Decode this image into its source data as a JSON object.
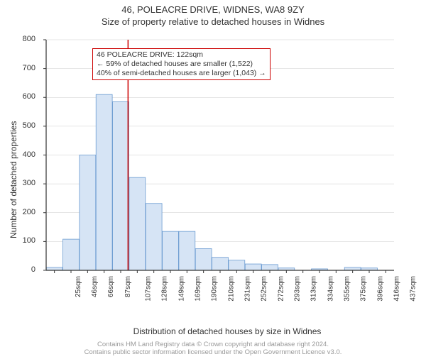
{
  "title_main": "46, POLEACRE DRIVE, WIDNES, WA8 9ZY",
  "title_sub": "Size of property relative to detached houses in Widnes",
  "chart": {
    "type": "histogram",
    "x_categories": [
      "25sqm",
      "46sqm",
      "66sqm",
      "87sqm",
      "107sqm",
      "128sqm",
      "149sqm",
      "169sqm",
      "190sqm",
      "210sqm",
      "231sqm",
      "252sqm",
      "272sqm",
      "293sqm",
      "313sqm",
      "334sqm",
      "355sqm",
      "375sqm",
      "396sqm",
      "416sqm",
      "437sqm"
    ],
    "values": [
      10,
      108,
      400,
      610,
      585,
      322,
      232,
      135,
      135,
      75,
      45,
      35,
      22,
      20,
      8,
      0,
      5,
      0,
      10,
      8,
      0
    ],
    "bar_fill": "#d6e4f5",
    "bar_stroke": "#6b9bd1",
    "background_color": "#ffffff",
    "grid_color": "#cccccc",
    "axis_color": "#333333",
    "ylim": [
      0,
      800
    ],
    "ytick_step": 100,
    "ylabel": "Number of detached properties",
    "xlabel": "Distribution of detached houses by size in Widnes",
    "marker_line": {
      "x_value": 122,
      "x_min": 25,
      "x_max": 437,
      "color": "#cc0000",
      "width": 1.5
    },
    "label_fontsize": 12,
    "tick_fontsize": 11
  },
  "annotation": {
    "line1": "46 POLEACRE DRIVE: 122sqm",
    "line2": "← 59% of detached houses are smaller (1,522)",
    "line3": "40% of semi-detached houses are larger (1,043) →",
    "border_color": "#cc0000"
  },
  "copyright": {
    "line1": "Contains HM Land Registry data © Crown copyright and database right 2024.",
    "line2": "Contains public sector information licensed under the Open Government Licence v3.0."
  }
}
